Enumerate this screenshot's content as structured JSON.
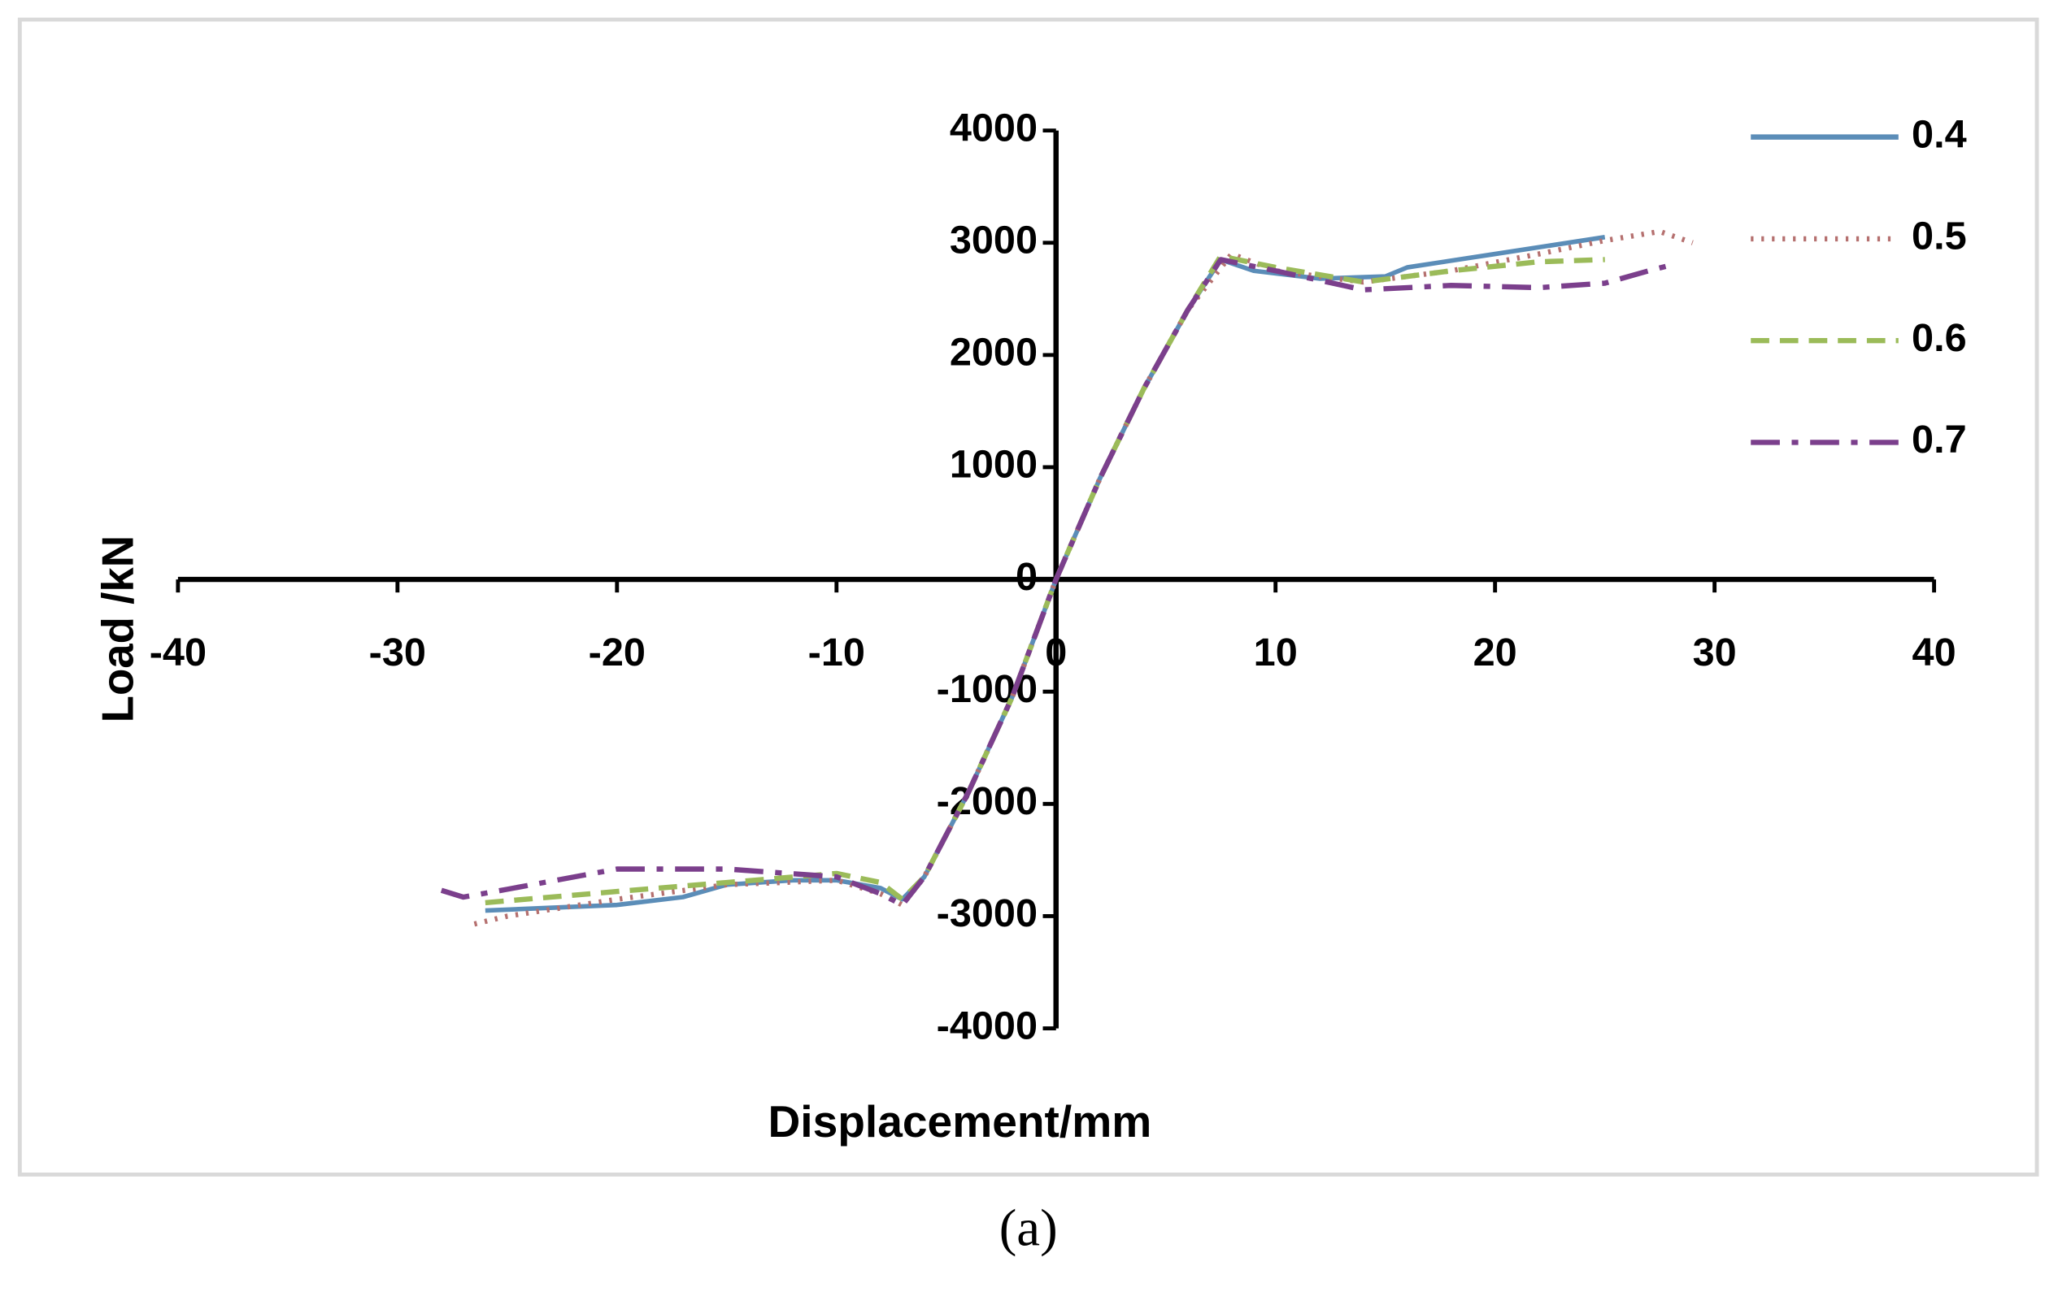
{
  "chart_data": {
    "type": "line",
    "x_label": "Displacement/mm",
    "y_label": "Load /kN",
    "caption": "(a)",
    "xlim": [
      -40,
      40
    ],
    "xticks": [
      -40,
      -30,
      -20,
      -10,
      0,
      10,
      20,
      30,
      40
    ],
    "ylim": [
      -4000,
      4000
    ],
    "yticks": [
      -4000,
      -3000,
      -2000,
      -1000,
      0,
      1000,
      2000,
      3000,
      4000
    ],
    "legend": "upper right",
    "series": [
      {
        "name": "0.4",
        "color": "#5b8db8",
        "linestyle": "solid",
        "x": [
          -26,
          -20,
          -17,
          -15,
          -12,
          -10,
          -8,
          -7,
          -6,
          -4,
          -2,
          0,
          2,
          4,
          6,
          7.5,
          9,
          12,
          15,
          16,
          20,
          25
        ],
        "values": [
          -2950,
          -2900,
          -2830,
          -2720,
          -2680,
          -2680,
          -2750,
          -2850,
          -2650,
          -1900,
          -1050,
          0,
          900,
          1700,
          2400,
          2850,
          2750,
          2680,
          2700,
          2780,
          2900,
          3050
        ]
      },
      {
        "name": "0.5",
        "color": "#b5706f",
        "linestyle": "dotted",
        "x": [
          -26.5,
          -25,
          -20,
          -15,
          -10,
          -8,
          -7,
          -6,
          -4,
          -2,
          0,
          2,
          4,
          6,
          8,
          10,
          14,
          18,
          22,
          25,
          27.5,
          29
        ],
        "values": [
          -3070,
          -3000,
          -2850,
          -2720,
          -2680,
          -2800,
          -2900,
          -2650,
          -1900,
          -1050,
          0,
          900,
          1700,
          2400,
          2900,
          2750,
          2650,
          2750,
          2900,
          3020,
          3100,
          3000
        ]
      },
      {
        "name": "0.6",
        "color": "#9bbb59",
        "linestyle": "dashed",
        "x": [
          -26,
          -20,
          -15,
          -10,
          -8,
          -7,
          -6,
          -4,
          -2,
          0,
          2,
          4,
          6,
          7.5,
          10,
          14,
          18,
          22,
          25
        ],
        "values": [
          -2880,
          -2780,
          -2700,
          -2620,
          -2700,
          -2850,
          -2650,
          -1900,
          -1050,
          0,
          900,
          1700,
          2400,
          2880,
          2780,
          2650,
          2750,
          2830,
          2850
        ]
      },
      {
        "name": "0.7",
        "color": "#7b3f8c",
        "linestyle": "dashdot",
        "x": [
          -28,
          -27,
          -25,
          -20,
          -15,
          -10,
          -8,
          -7,
          -6,
          -4,
          -2,
          0,
          2,
          4,
          6,
          7.5,
          10,
          14,
          18,
          22,
          25,
          27,
          28
        ],
        "values": [
          -2770,
          -2830,
          -2760,
          -2580,
          -2580,
          -2650,
          -2800,
          -2900,
          -2650,
          -1900,
          -1050,
          0,
          900,
          1700,
          2400,
          2850,
          2750,
          2580,
          2620,
          2600,
          2640,
          2750,
          2800
        ]
      }
    ]
  }
}
